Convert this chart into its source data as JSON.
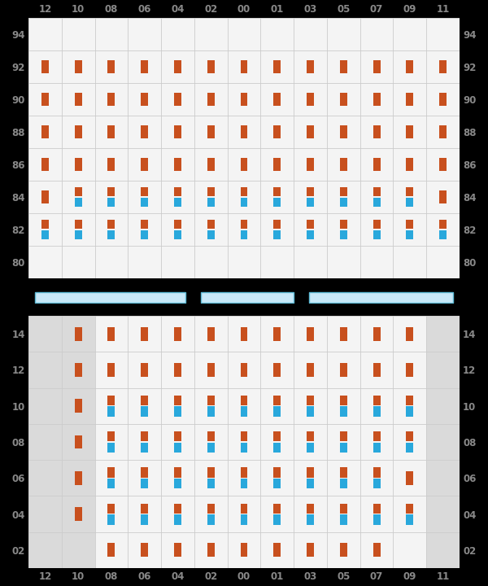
{
  "col_labels": [
    "12",
    "10",
    "08",
    "06",
    "04",
    "02",
    "00",
    "01",
    "03",
    "05",
    "07",
    "09",
    "11"
  ],
  "top_row_labels": [
    "94",
    "92",
    "90",
    "88",
    "86",
    "84",
    "82",
    "80"
  ],
  "bot_row_labels": [
    "14",
    "12",
    "10",
    "08",
    "06",
    "04",
    "02"
  ],
  "orange": "#C8501E",
  "blue": "#29A8DC",
  "bg_light": "#EBEBEB",
  "bg_gray": "#DADADA",
  "bg_white_cell": "#F4F4F4",
  "grid_color": "#CCCCCC",
  "tick_color": "#888888",
  "fig_bg": "#000000",
  "blue_bar_color": "#87CEEB",
  "blue_bar_border": "#5BB8D4",
  "top_orange": {
    "94": [],
    "92": [
      "12",
      "10",
      "08",
      "06",
      "04",
      "02",
      "00",
      "01",
      "03",
      "05",
      "07",
      "09",
      "11"
    ],
    "90": [
      "12",
      "10",
      "08",
      "06",
      "04",
      "02",
      "00",
      "01",
      "03",
      "05",
      "07",
      "09",
      "11"
    ],
    "88": [
      "12",
      "10",
      "08",
      "06",
      "04",
      "02",
      "00",
      "01",
      "03",
      "05",
      "07",
      "09",
      "11"
    ],
    "86": [
      "12",
      "10",
      "08",
      "06",
      "04",
      "02",
      "00",
      "01",
      "03",
      "05",
      "07",
      "09",
      "11"
    ],
    "84": [
      "12",
      "10",
      "08",
      "06",
      "04",
      "02",
      "00",
      "01",
      "03",
      "05",
      "07",
      "09",
      "11"
    ],
    "82": [
      "12",
      "10",
      "08",
      "06",
      "04",
      "02",
      "00",
      "01",
      "03",
      "05",
      "07",
      "09",
      "11"
    ],
    "80": []
  },
  "top_blue": {
    "94": [],
    "92": [],
    "90": [],
    "88": [],
    "86": [],
    "84": [
      "10",
      "08",
      "06",
      "04",
      "02",
      "00",
      "01",
      "03",
      "05",
      "07",
      "09"
    ],
    "82": [
      "12",
      "10",
      "08",
      "06",
      "04",
      "02",
      "00",
      "01",
      "03",
      "05",
      "07",
      "09",
      "11"
    ],
    "80": []
  },
  "bot_orange": {
    "14": [
      "10",
      "08",
      "06",
      "04",
      "02",
      "00",
      "01",
      "03",
      "05",
      "07",
      "09"
    ],
    "12": [
      "10",
      "08",
      "06",
      "04",
      "02",
      "00",
      "01",
      "03",
      "05",
      "07",
      "09"
    ],
    "10": [
      "10",
      "08",
      "06",
      "04",
      "02",
      "00",
      "01",
      "03",
      "05",
      "07",
      "09"
    ],
    "08": [
      "10",
      "08",
      "06",
      "04",
      "02",
      "00",
      "01",
      "03",
      "05",
      "07",
      "09"
    ],
    "06": [
      "10",
      "08",
      "06",
      "04",
      "02",
      "00",
      "01",
      "03",
      "05",
      "07",
      "09"
    ],
    "04": [
      "10",
      "08",
      "06",
      "04",
      "02",
      "00",
      "01",
      "03",
      "05",
      "07",
      "09"
    ],
    "02": [
      "08",
      "06",
      "04",
      "02",
      "00",
      "01",
      "03",
      "05",
      "07"
    ]
  },
  "bot_blue": {
    "14": [],
    "12": [],
    "10": [
      "08",
      "06",
      "04",
      "02",
      "00",
      "01",
      "03",
      "05",
      "07",
      "09"
    ],
    "08": [
      "08",
      "06",
      "04",
      "02",
      "00",
      "01",
      "03",
      "05",
      "07",
      "09"
    ],
    "06": [
      "08",
      "06",
      "04",
      "02",
      "00",
      "01",
      "03",
      "05",
      "07"
    ],
    "04": [
      "08",
      "06",
      "04",
      "02",
      "00",
      "01",
      "03",
      "05",
      "07",
      "09"
    ],
    "02": []
  },
  "top_gray_cols": [],
  "bot_gray_cols": [
    "12",
    "10",
    "11"
  ],
  "fig_width": 6.0,
  "fig_height": 7.2,
  "dpi": 100
}
